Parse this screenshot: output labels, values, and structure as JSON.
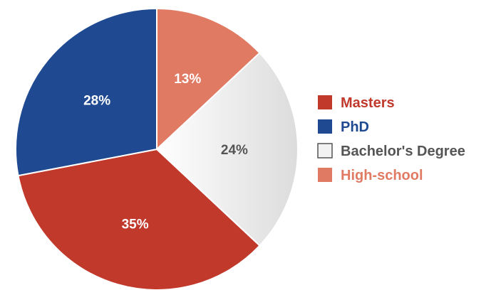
{
  "chart_data": {
    "type": "pie",
    "categories": [
      "High-school",
      "Bachelor's Degree",
      "Masters",
      "PhD"
    ],
    "values": [
      13,
      24,
      35,
      28
    ],
    "value_labels": [
      "13%",
      "24%",
      "35%",
      "28%"
    ],
    "start_angle_deg": 0,
    "direction": "clockwise",
    "legend": {
      "placement": "right",
      "order": [
        "Masters",
        "PhD",
        "Bachelor's Degree",
        "High-school"
      ]
    },
    "colors": {
      "Masters": "#c0392b",
      "PhD": "#1f4a92",
      "Bachelor's Degree": "#e6e6e6",
      "High-school": "#e07a63"
    },
    "label_text_colors": {
      "Masters": "#ffffff",
      "PhD": "#ffffff",
      "Bachelor's Degree": "#555555",
      "High-school": "#ffffff"
    },
    "legend_text_colors": {
      "Masters": "#c0392b",
      "PhD": "#1f4a92",
      "Bachelor's Degree": "#555555",
      "High-school": "#e07a63"
    }
  }
}
